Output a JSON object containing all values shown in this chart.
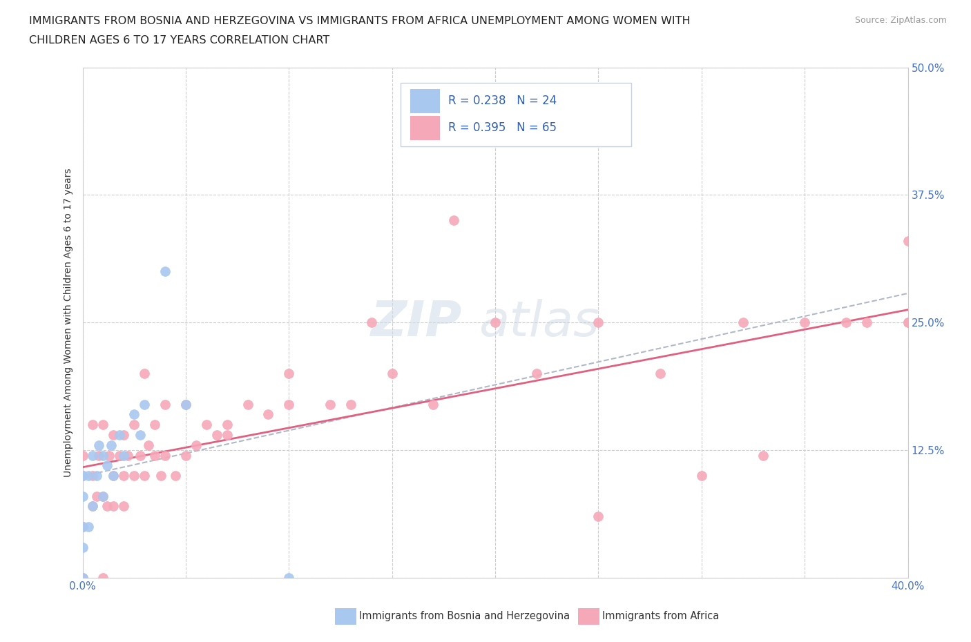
{
  "title_line1": "IMMIGRANTS FROM BOSNIA AND HERZEGOVINA VS IMMIGRANTS FROM AFRICA UNEMPLOYMENT AMONG WOMEN WITH",
  "title_line2": "CHILDREN AGES 6 TO 17 YEARS CORRELATION CHART",
  "source": "Source: ZipAtlas.com",
  "ylabel": "Unemployment Among Women with Children Ages 6 to 17 years",
  "xlim": [
    0.0,
    0.4
  ],
  "ylim": [
    0.0,
    0.5
  ],
  "xticks": [
    0.0,
    0.05,
    0.1,
    0.15,
    0.2,
    0.25,
    0.3,
    0.35,
    0.4
  ],
  "yticks": [
    0.0,
    0.125,
    0.25,
    0.375,
    0.5
  ],
  "xticklabels": [
    "0.0%",
    "",
    "",
    "",
    "",
    "",
    "",
    "",
    "40.0%"
  ],
  "yticklabels": [
    "",
    "12.5%",
    "25.0%",
    "37.5%",
    "50.0%"
  ],
  "color_bosnia": "#a8c8f0",
  "color_africa": "#f5a8b8",
  "trendline_color_bosnia": "#b0b8c8",
  "trendline_color_africa": "#e06080",
  "watermark_zip": "ZIP",
  "watermark_atlas": "atlas",
  "legend_text1": "R = 0.238   N = 24",
  "legend_text2": "R = 0.395   N = 65",
  "legend_label1": "Immigrants from Bosnia and Herzegovina",
  "legend_label2": "Immigrants from Africa",
  "bosnia_x": [
    0.0,
    0.0,
    0.0,
    0.0,
    0.0,
    0.003,
    0.003,
    0.005,
    0.005,
    0.007,
    0.008,
    0.01,
    0.01,
    0.012,
    0.014,
    0.015,
    0.018,
    0.02,
    0.025,
    0.028,
    0.03,
    0.04,
    0.05,
    0.1
  ],
  "bosnia_y": [
    0.0,
    0.03,
    0.05,
    0.08,
    0.1,
    0.05,
    0.1,
    0.07,
    0.12,
    0.1,
    0.13,
    0.08,
    0.12,
    0.11,
    0.13,
    0.1,
    0.14,
    0.12,
    0.16,
    0.14,
    0.17,
    0.3,
    0.17,
    0.0
  ],
  "africa_x": [
    0.0,
    0.0,
    0.0,
    0.0,
    0.005,
    0.005,
    0.005,
    0.007,
    0.008,
    0.01,
    0.01,
    0.01,
    0.012,
    0.013,
    0.015,
    0.015,
    0.015,
    0.018,
    0.02,
    0.02,
    0.02,
    0.022,
    0.025,
    0.025,
    0.028,
    0.03,
    0.03,
    0.032,
    0.035,
    0.035,
    0.038,
    0.04,
    0.04,
    0.045,
    0.05,
    0.05,
    0.055,
    0.06,
    0.065,
    0.07,
    0.07,
    0.08,
    0.09,
    0.1,
    0.1,
    0.12,
    0.13,
    0.14,
    0.15,
    0.17,
    0.18,
    0.2,
    0.22,
    0.25,
    0.25,
    0.28,
    0.3,
    0.32,
    0.33,
    0.35,
    0.37,
    0.38,
    0.4,
    0.4,
    0.4
  ],
  "africa_y": [
    0.0,
    0.05,
    0.1,
    0.12,
    0.07,
    0.1,
    0.15,
    0.08,
    0.12,
    0.0,
    0.08,
    0.15,
    0.07,
    0.12,
    0.07,
    0.1,
    0.14,
    0.12,
    0.07,
    0.1,
    0.14,
    0.12,
    0.1,
    0.15,
    0.12,
    0.1,
    0.2,
    0.13,
    0.12,
    0.15,
    0.1,
    0.12,
    0.17,
    0.1,
    0.12,
    0.17,
    0.13,
    0.15,
    0.14,
    0.14,
    0.15,
    0.17,
    0.16,
    0.17,
    0.2,
    0.17,
    0.17,
    0.25,
    0.2,
    0.17,
    0.35,
    0.25,
    0.2,
    0.25,
    0.06,
    0.2,
    0.1,
    0.25,
    0.12,
    0.25,
    0.25,
    0.25,
    0.25,
    0.33,
    0.25
  ]
}
